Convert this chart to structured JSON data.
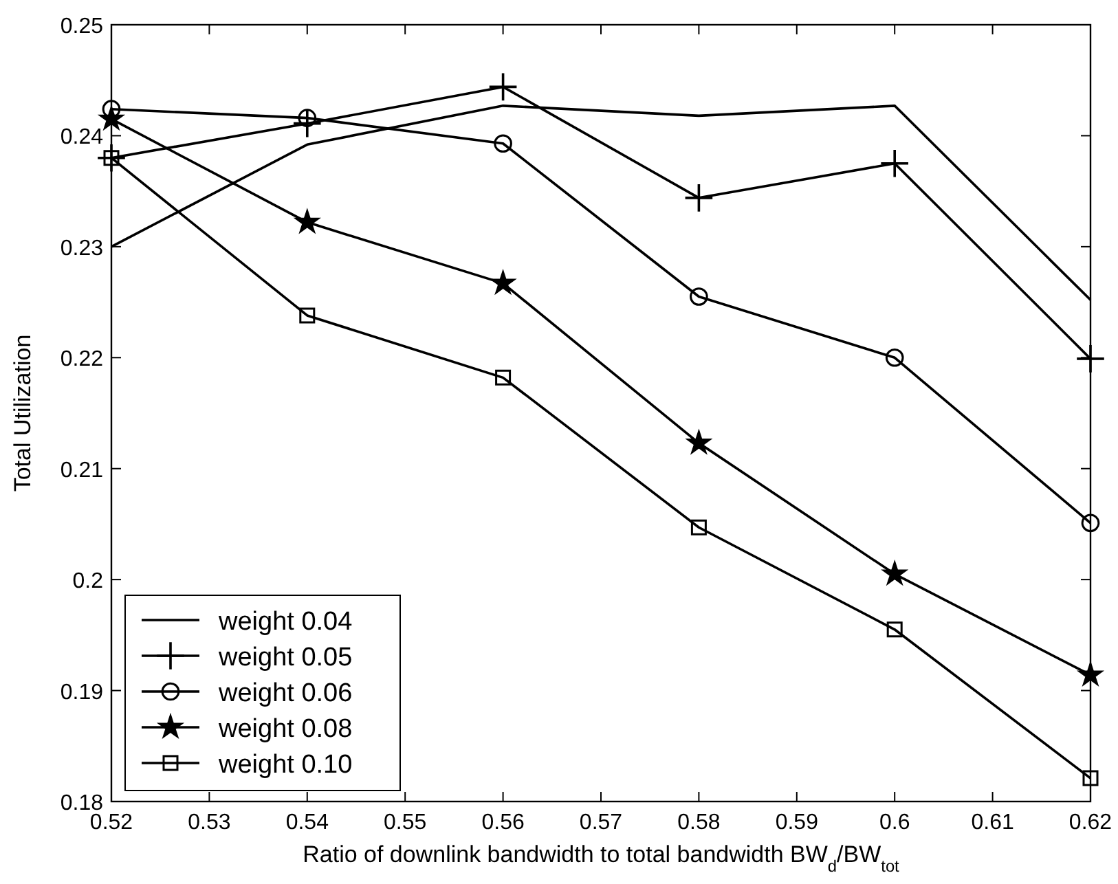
{
  "chart_data": {
    "type": "line",
    "xlabel": "Ratio of downlink bandwidth to total bandwidth BW$_{d}$/BW$_{tot}$",
    "ylabel": "Total Utilization",
    "x": [
      0.52,
      0.54,
      0.56,
      0.58,
      0.6,
      0.62
    ],
    "series": [
      {
        "name": "weight 0.04",
        "color": "#000000",
        "marker": "none",
        "values": [
          0.23,
          0.2392,
          0.2427,
          0.2418,
          0.2427,
          0.2252
        ]
      },
      {
        "name": "weight 0.05",
        "color": "#000000",
        "marker": "cross",
        "values": [
          0.238,
          0.2411,
          0.2444,
          0.2344,
          0.2375,
          0.2199
        ]
      },
      {
        "name": "weight 0.06",
        "color": "#000000",
        "marker": "circle",
        "values": [
          0.2424,
          0.2416,
          0.2393,
          0.2255,
          0.22,
          0.2051
        ]
      },
      {
        "name": "weight 0.08",
        "color": "#000000",
        "marker": "star",
        "values": [
          0.2415,
          0.2322,
          0.2267,
          0.2123,
          0.2005,
          0.1914
        ]
      },
      {
        "name": "weight 0.10",
        "color": "#000000",
        "marker": "square",
        "values": [
          0.238,
          0.2238,
          0.2182,
          0.2047,
          0.1955,
          0.1821
        ]
      }
    ],
    "xlim": [
      0.52,
      0.62
    ],
    "xticks": [
      0.52,
      0.53,
      0.54,
      0.55,
      0.56,
      0.57,
      0.58,
      0.59,
      0.6,
      0.61,
      0.62
    ],
    "ylim": [
      0.18,
      0.25
    ],
    "yticks": [
      0.18,
      0.19,
      0.2,
      0.21,
      0.22,
      0.23,
      0.24,
      0.25
    ],
    "grid": false,
    "legend": "bottom left",
    "line_style": "solid"
  }
}
